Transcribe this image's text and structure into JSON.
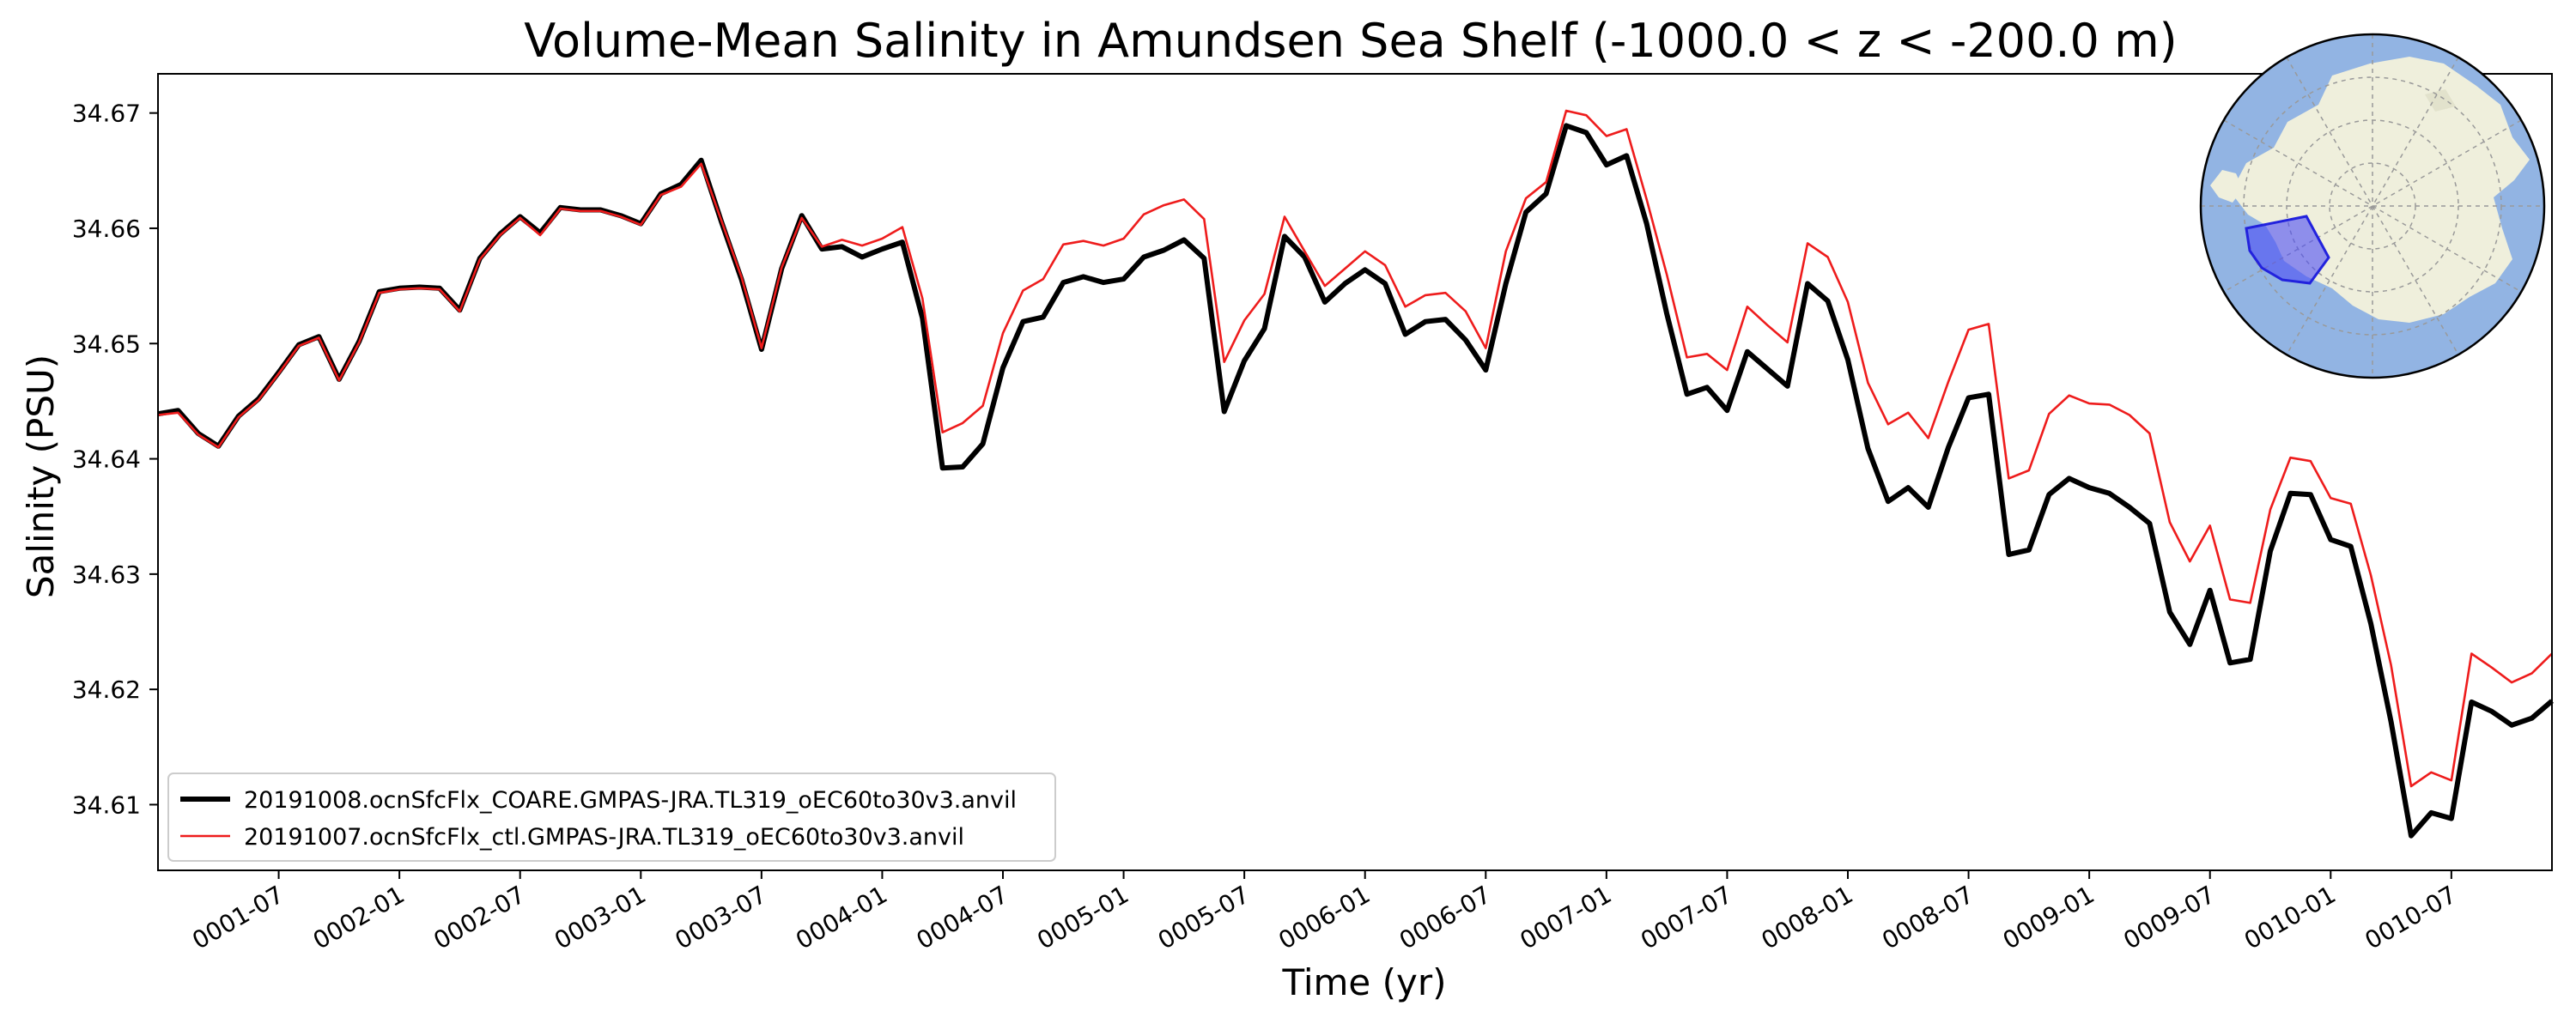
{
  "chart_data": {
    "type": "line",
    "title": "Volume-Mean Salinity in Amundsen Sea Shelf (-1000.0 < z < -200.0 m)",
    "xlabel": "Time (yr)",
    "ylabel": "Salinity (PSU)",
    "x_start": "0001-01",
    "x_interval": "monthly",
    "x_ticks": [
      "0001-07",
      "0002-01",
      "0002-07",
      "0003-01",
      "0003-07",
      "0004-01",
      "0004-07",
      "0005-01",
      "0005-07",
      "0006-01",
      "0006-07",
      "0007-01",
      "0007-07",
      "0008-01",
      "0008-07",
      "0009-01",
      "0009-07",
      "0010-01",
      "0010-07"
    ],
    "y_ticks": [
      "34.61",
      "34.62",
      "34.63",
      "34.64",
      "34.65",
      "34.66",
      "34.67"
    ],
    "ylim": [
      34.6043,
      34.6734
    ],
    "grid": false,
    "legend_placement": "lower-left",
    "series": [
      {
        "name": "20191008.ocnSfcFlx_COARE.GMPAS-JRA.TL319_oEC60to30v3.anvil",
        "color": "#000000",
        "values": [
          34.6439,
          34.6442,
          34.6422,
          34.6411,
          34.6437,
          34.6452,
          34.6475,
          34.6499,
          34.6506,
          34.6469,
          34.6502,
          34.6545,
          34.6548,
          34.6549,
          34.6548,
          34.6529,
          34.6574,
          34.6595,
          34.661,
          34.6596,
          34.6618,
          34.6616,
          34.6616,
          34.6611,
          34.6604,
          34.663,
          34.6638,
          34.6659,
          34.6606,
          34.6556,
          34.6495,
          34.6565,
          34.6611,
          34.6582,
          34.6584,
          34.6575,
          34.6582,
          34.6588,
          34.6522,
          34.6392,
          34.6393,
          34.6413,
          34.6479,
          34.6519,
          34.6523,
          34.6553,
          34.6558,
          34.6553,
          34.6556,
          34.6575,
          34.6581,
          34.659,
          34.6574,
          34.6441,
          34.6485,
          34.6513,
          34.6593,
          34.6575,
          34.6536,
          34.6552,
          34.6564,
          34.6552,
          34.6508,
          34.6519,
          34.6521,
          34.6503,
          34.6477,
          34.6552,
          34.6614,
          34.663,
          34.6689,
          34.6683,
          34.6655,
          34.6663,
          34.6604,
          34.6526,
          34.6456,
          34.6462,
          34.6442,
          34.6493,
          34.6478,
          34.6463,
          34.6552,
          34.6537,
          34.6486,
          34.6409,
          34.6363,
          34.6375,
          34.6358,
          34.641,
          34.6453,
          34.6456,
          34.6317,
          34.6321,
          34.6369,
          34.6383,
          34.6375,
          34.637,
          34.6358,
          34.6344,
          34.6267,
          34.6239,
          34.6286,
          34.6223,
          34.6226,
          34.632,
          34.637,
          34.6369,
          34.633,
          34.6324,
          34.6257,
          34.6172,
          34.6073,
          34.6093,
          34.6088,
          34.6189,
          34.6181,
          34.6169,
          34.6175,
          34.619
        ]
      },
      {
        "name": "20191007.ocnSfcFlx_ctl.GMPAS-JRA.TL319_oEC60to30v3.anvil",
        "color": "#ee1c1c",
        "values": [
          34.6438,
          34.644,
          34.6421,
          34.641,
          34.6436,
          34.6451,
          34.6474,
          34.6498,
          34.6505,
          34.6468,
          34.6501,
          34.6544,
          34.6547,
          34.6548,
          34.6547,
          34.6528,
          34.6573,
          34.6594,
          34.6609,
          34.6594,
          34.6617,
          34.6615,
          34.6615,
          34.661,
          34.6603,
          34.6629,
          34.6636,
          34.6656,
          34.6607,
          34.6558,
          34.6496,
          34.6566,
          34.6609,
          34.6584,
          34.659,
          34.6585,
          34.6591,
          34.6601,
          34.6539,
          34.6423,
          34.6431,
          34.6446,
          34.6509,
          34.6546,
          34.6556,
          34.6586,
          34.6589,
          34.6585,
          34.6591,
          34.6612,
          34.662,
          34.6625,
          34.6608,
          34.6484,
          34.652,
          34.6543,
          34.661,
          34.658,
          34.655,
          34.6565,
          34.658,
          34.6568,
          34.6532,
          34.6542,
          34.6544,
          34.6528,
          34.6496,
          34.658,
          34.6626,
          34.664,
          34.6702,
          34.6698,
          34.668,
          34.6686,
          34.6625,
          34.656,
          34.6488,
          34.6491,
          34.6477,
          34.6532,
          34.6516,
          34.6501,
          34.6587,
          34.6575,
          34.6536,
          34.6466,
          34.643,
          34.644,
          34.6418,
          34.6467,
          34.6512,
          34.6517,
          34.6383,
          34.639,
          34.6439,
          34.6455,
          34.6448,
          34.6447,
          34.6438,
          34.6422,
          34.6345,
          34.6311,
          34.6342,
          34.6278,
          34.6275,
          34.6356,
          34.6401,
          34.6398,
          34.6366,
          34.6361,
          34.6299,
          34.6221,
          34.6116,
          34.6128,
          34.6121,
          34.6231,
          34.6219,
          34.6206,
          34.6214,
          34.6231
        ]
      }
    ]
  },
  "colors": {
    "ocean": "#92b4e3",
    "land": "#efefdc",
    "region_fill": "#4c4cf5",
    "region_edge": "#2222dd"
  }
}
